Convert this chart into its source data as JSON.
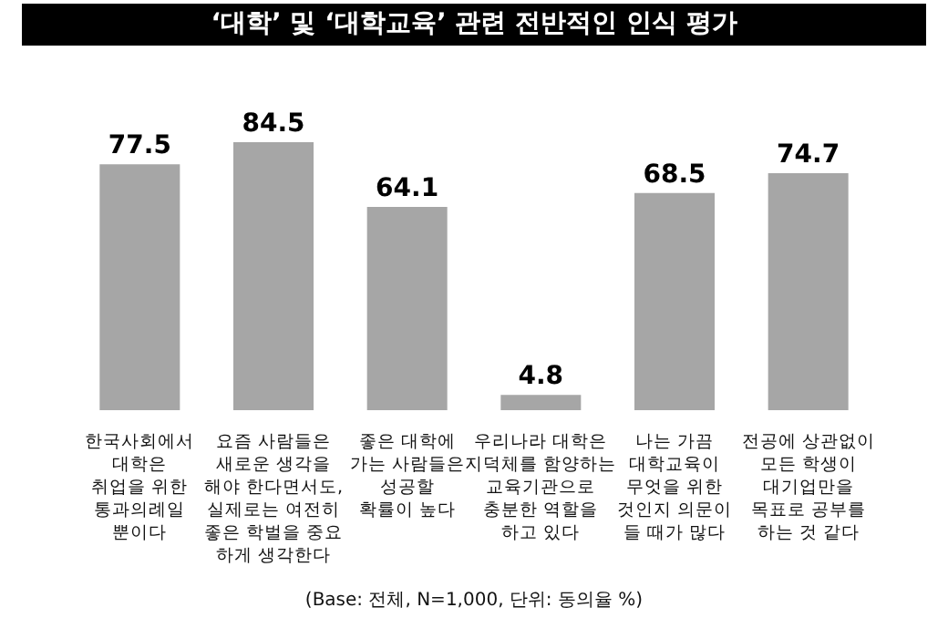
{
  "chart_data": {
    "type": "bar",
    "title": "‘대학’ 및 ‘대학교육’ 관련 전반적인 인식 평가",
    "categories": [
      "한국사회에서\n대학은\n취업을 위한\n통과의례일\n뿐이다",
      "요즘 사람들은\n새로운 생각을\n해야 한다면서도,\n실제로는 여전히\n좋은 학벌을 중요\n하게 생각한다",
      "좋은 대학에\n가는 사람들은\n성공할\n확률이 높다",
      "우리나라 대학은\n지덕체를 함양하는\n교육기관으로\n충분한 역할을\n하고 있다",
      "나는 가끔\n대학교육이\n무엇을 위한\n것인지 의문이\n들 때가 많다",
      "전공에 상관없이\n모든 학생이\n대기업만을\n목표로 공부를\n하는 것 같다"
    ],
    "values": [
      77.5,
      84.5,
      64.1,
      4.8,
      68.5,
      74.7
    ],
    "color": "#a6a6a6",
    "data_labels": true,
    "annotations": [
      "(Base: 전체, N=1,000, 단위: 동의율 %)"
    ]
  }
}
